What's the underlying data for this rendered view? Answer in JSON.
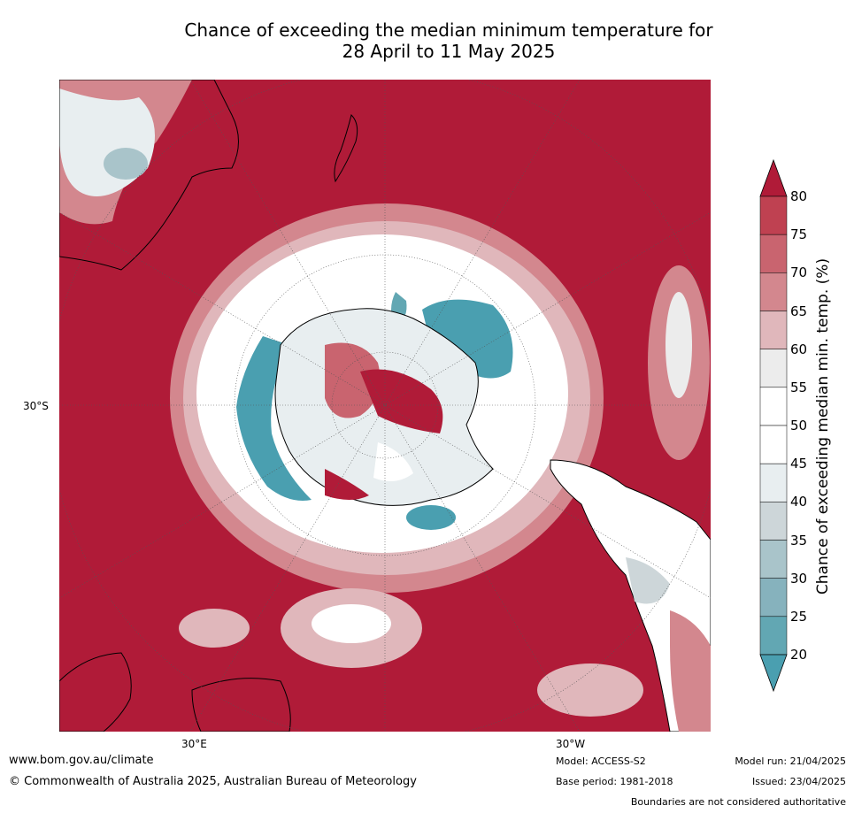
{
  "title": {
    "line1": "Chance of exceeding the median minimum temperature for",
    "line2": "28 April to 11 May 2025"
  },
  "map": {
    "projection": "south-polar stereographic",
    "lat_label": "30°S",
    "lon_labels": {
      "east": "30°E",
      "west": "30°W"
    },
    "dominant_category": "80+",
    "features": [
      "Antarctica",
      "Australia",
      "New Zealand",
      "South America",
      "Southern Africa"
    ]
  },
  "colorbar": {
    "label": "Chance of exceeding median min. temp. (%)",
    "ticks": [
      "80",
      "75",
      "70",
      "65",
      "60",
      "55",
      "50",
      "45",
      "40",
      "35",
      "30",
      "25",
      "20"
    ],
    "colors": [
      "#b01b38",
      "#bf4151",
      "#c9646f",
      "#d3878e",
      "#e0b7bb",
      "#ececec",
      "#ffffff",
      "#ffffff",
      "#e8eef0",
      "#cdd6d9",
      "#a9c4ca",
      "#86b2bd",
      "#62a7b3",
      "#4a9fb0"
    ],
    "extend": "both"
  },
  "footer": {
    "website": "www.bom.gov.au/climate",
    "copyright": "© Commonwealth of Australia 2025, Australian Bureau of Meteorology",
    "model": "Model: ACCESS-S2",
    "base_period": "Base period: 1981-2018",
    "model_run": "Model run: 21/04/2025",
    "issued": "Issued: 23/04/2025",
    "disclaimer": "Boundaries are not considered authoritative"
  }
}
